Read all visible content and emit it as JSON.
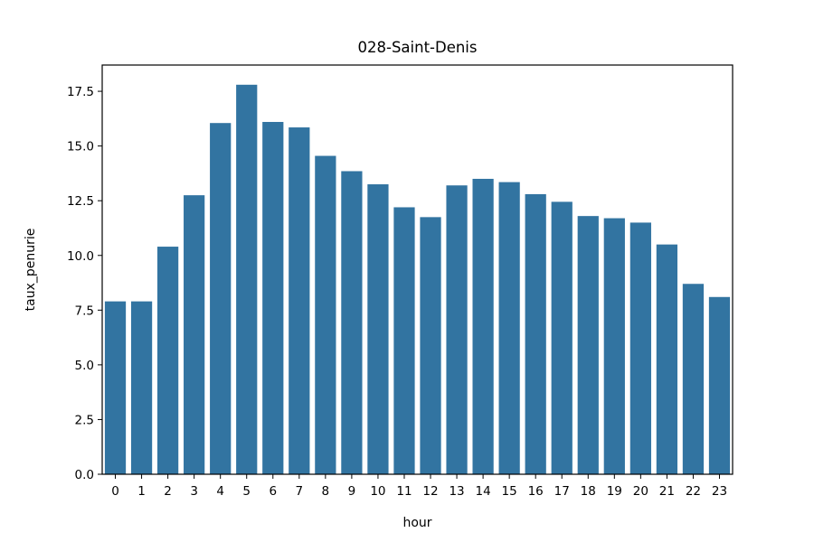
{
  "chart_data": {
    "type": "bar",
    "title": "028-Saint-Denis",
    "xlabel": "hour",
    "ylabel": "taux_penurie",
    "categories": [
      "0",
      "1",
      "2",
      "3",
      "4",
      "5",
      "6",
      "7",
      "8",
      "9",
      "10",
      "11",
      "12",
      "13",
      "14",
      "15",
      "16",
      "17",
      "18",
      "19",
      "20",
      "21",
      "22",
      "23"
    ],
    "values": [
      7.9,
      7.9,
      10.4,
      12.75,
      16.05,
      17.8,
      16.1,
      15.85,
      14.55,
      13.85,
      13.25,
      12.2,
      11.75,
      13.2,
      13.5,
      13.35,
      12.8,
      12.45,
      11.8,
      11.7,
      11.5,
      10.5,
      8.7,
      8.1
    ],
    "ylim": [
      0,
      18.7
    ],
    "yticks": [
      "0.0",
      "2.5",
      "5.0",
      "7.5",
      "10.0",
      "12.5",
      "15.0",
      "17.5"
    ],
    "bar_color": "#3274a1",
    "grid": false,
    "legend": "none"
  }
}
